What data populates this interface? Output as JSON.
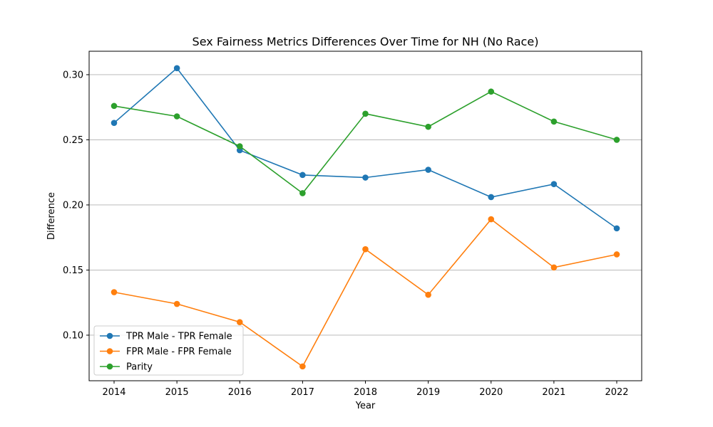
{
  "chart_data": {
    "type": "line",
    "title": "Sex Fairness Metrics Differences Over Time for NH (No Race)",
    "xlabel": "Year",
    "ylabel": "Difference",
    "x": [
      "2014",
      "2015",
      "2016",
      "2017",
      "2018",
      "2019",
      "2020",
      "2021",
      "2022"
    ],
    "yticks": [
      "0.10",
      "0.15",
      "0.20",
      "0.25",
      "0.30"
    ],
    "ylim": [
      0.065,
      0.318
    ],
    "grid": "horizontal",
    "legend_position": "lower-left",
    "series": [
      {
        "name": "TPR Male - TPR Female",
        "color": "#1f77b4",
        "values": [
          0.263,
          0.305,
          0.242,
          0.223,
          0.221,
          0.227,
          0.206,
          0.216,
          0.182
        ]
      },
      {
        "name": "FPR Male - FPR Female",
        "color": "#ff7f0e",
        "values": [
          0.133,
          0.124,
          0.11,
          0.076,
          0.166,
          0.131,
          0.189,
          0.152,
          0.162
        ]
      },
      {
        "name": "Parity",
        "color": "#2ca02c",
        "values": [
          0.276,
          0.268,
          0.245,
          0.209,
          0.27,
          0.26,
          0.287,
          0.264,
          0.25
        ]
      }
    ]
  }
}
